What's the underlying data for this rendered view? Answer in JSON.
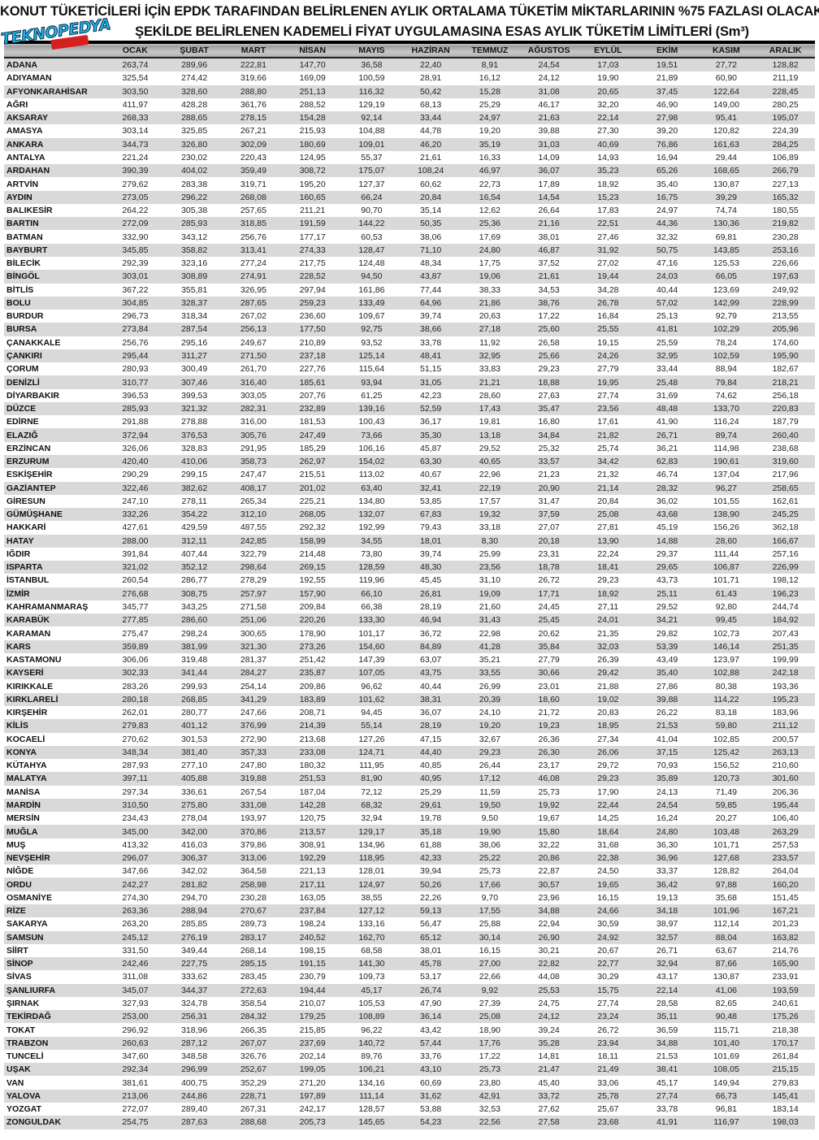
{
  "title_line1": "KONUT TÜKETİCİLERİ İÇİN EPDK TARAFINDAN BELİRLENEN AYLIK ORTALAMA TÜKETİM MİKTARLARININ %75 FAZLASI OLACAK",
  "title_line2": "ŞEKİLDE BELİRLENEN KADEMELİ FİYAT UYGULAMASINA ESAS AYLIK TÜKETİM LİMİTLERİ (Sm³)",
  "logo_text": "TEKNOPEDYA",
  "columns": [
    "",
    "OCAK",
    "ŞUBAT",
    "MART",
    "NİSAN",
    "MAYIS",
    "HAZİRAN",
    "TEMMUZ",
    "AĞUSTOS",
    "EYLÜL",
    "EKİM",
    "KASIM",
    "ARALIK"
  ],
  "rows": [
    [
      "ADANA",
      "263,74",
      "289,96",
      "222,81",
      "147,70",
      "36,58",
      "22,40",
      "8,91",
      "24,54",
      "17,03",
      "19,51",
      "27,72",
      "128,82"
    ],
    [
      "ADIYAMAN",
      "325,54",
      "274,42",
      "319,66",
      "169,09",
      "100,59",
      "28,91",
      "16,12",
      "24,12",
      "19,90",
      "21,89",
      "60,90",
      "211,19"
    ],
    [
      "AFYONKARAHİSAR",
      "303,50",
      "328,60",
      "288,80",
      "251,13",
      "116,32",
      "50,42",
      "15,28",
      "31,08",
      "20,65",
      "37,45",
      "122,64",
      "228,45"
    ],
    [
      "AĞRI",
      "411,97",
      "428,28",
      "361,76",
      "288,52",
      "129,19",
      "68,13",
      "25,29",
      "46,17",
      "32,20",
      "46,90",
      "149,00",
      "280,25"
    ],
    [
      "AKSARAY",
      "268,33",
      "288,65",
      "278,15",
      "154,28",
      "92,14",
      "33,44",
      "24,97",
      "21,63",
      "22,14",
      "27,98",
      "95,41",
      "195,07"
    ],
    [
      "AMASYA",
      "303,14",
      "325,85",
      "267,21",
      "215,93",
      "104,88",
      "44,78",
      "19,20",
      "39,88",
      "27,30",
      "39,20",
      "120,82",
      "224,39"
    ],
    [
      "ANKARA",
      "344,73",
      "326,80",
      "302,09",
      "180,69",
      "109,01",
      "46,20",
      "35,19",
      "31,03",
      "40,69",
      "76,86",
      "161,63",
      "284,25"
    ],
    [
      "ANTALYA",
      "221,24",
      "230,02",
      "220,43",
      "124,95",
      "55,37",
      "21,61",
      "16,33",
      "14,09",
      "14,93",
      "16,94",
      "29,44",
      "106,89"
    ],
    [
      "ARDAHAN",
      "390,39",
      "404,02",
      "359,49",
      "308,72",
      "175,07",
      "108,24",
      "46,97",
      "36,07",
      "35,23",
      "65,26",
      "168,65",
      "266,79"
    ],
    [
      "ARTVİN",
      "279,62",
      "283,38",
      "319,71",
      "195,20",
      "127,37",
      "60,62",
      "22,73",
      "17,89",
      "18,92",
      "35,40",
      "130,87",
      "227,13"
    ],
    [
      "AYDIN",
      "273,05",
      "296,22",
      "268,08",
      "160,65",
      "66,24",
      "20,84",
      "16,54",
      "14,54",
      "15,23",
      "16,75",
      "39,29",
      "165,32"
    ],
    [
      "BALIKESİR",
      "264,22",
      "305,38",
      "257,65",
      "211,21",
      "90,70",
      "35,14",
      "12,62",
      "26,64",
      "17,83",
      "24,97",
      "74,74",
      "180,55"
    ],
    [
      "BARTIN",
      "272,09",
      "285,93",
      "318,85",
      "191,59",
      "144,22",
      "50,35",
      "25,36",
      "21,16",
      "22,51",
      "44,36",
      "130,36",
      "219,82"
    ],
    [
      "BATMAN",
      "332,90",
      "343,12",
      "256,76",
      "177,17",
      "60,53",
      "38,06",
      "17,69",
      "38,01",
      "27,46",
      "32,32",
      "69,81",
      "230,28"
    ],
    [
      "BAYBURT",
      "345,85",
      "358,82",
      "313,41",
      "274,33",
      "128,47",
      "71,10",
      "24,80",
      "46,87",
      "31,92",
      "50,75",
      "143,85",
      "253,16"
    ],
    [
      "BİLECİK",
      "292,39",
      "323,16",
      "277,24",
      "217,75",
      "124,48",
      "48,34",
      "17,75",
      "37,52",
      "27,02",
      "47,16",
      "125,53",
      "226,66"
    ],
    [
      "BİNGÖL",
      "303,01",
      "308,89",
      "274,91",
      "228,52",
      "94,50",
      "43,87",
      "19,06",
      "21,61",
      "19,44",
      "24,03",
      "66,05",
      "197,63"
    ],
    [
      "BİTLİS",
      "367,22",
      "355,81",
      "326,95",
      "297,94",
      "161,86",
      "77,44",
      "38,33",
      "34,53",
      "34,28",
      "40,44",
      "123,69",
      "249,92"
    ],
    [
      "BOLU",
      "304,85",
      "328,37",
      "287,65",
      "259,23",
      "133,49",
      "64,96",
      "21,86",
      "38,76",
      "26,78",
      "57,02",
      "142,99",
      "228,99"
    ],
    [
      "BURDUR",
      "296,73",
      "318,34",
      "267,02",
      "236,60",
      "109,67",
      "39,74",
      "20,63",
      "17,22",
      "16,84",
      "25,13",
      "92,79",
      "213,55"
    ],
    [
      "BURSA",
      "273,84",
      "287,54",
      "256,13",
      "177,50",
      "92,75",
      "38,66",
      "27,18",
      "25,60",
      "25,55",
      "41,81",
      "102,29",
      "205,96"
    ],
    [
      "ÇANAKKALE",
      "256,76",
      "295,16",
      "249,67",
      "210,89",
      "93,52",
      "33,78",
      "11,92",
      "26,58",
      "19,15",
      "25,59",
      "78,24",
      "174,60"
    ],
    [
      "ÇANKIRI",
      "295,44",
      "311,27",
      "271,50",
      "237,18",
      "125,14",
      "48,41",
      "32,95",
      "25,66",
      "24,26",
      "32,95",
      "102,59",
      "195,90"
    ],
    [
      "ÇORUM",
      "280,93",
      "300,49",
      "261,70",
      "227,76",
      "115,64",
      "51,15",
      "33,83",
      "29,23",
      "27,79",
      "33,44",
      "88,94",
      "182,67"
    ],
    [
      "DENİZLİ",
      "310,77",
      "307,46",
      "316,40",
      "185,61",
      "93,94",
      "31,05",
      "21,21",
      "18,88",
      "19,95",
      "25,48",
      "79,84",
      "218,21"
    ],
    [
      "DİYARBAKIR",
      "396,53",
      "399,53",
      "303,05",
      "207,76",
      "61,25",
      "42,23",
      "28,60",
      "27,63",
      "27,74",
      "31,69",
      "74,62",
      "256,18"
    ],
    [
      "DÜZCE",
      "285,93",
      "321,32",
      "282,31",
      "232,89",
      "139,16",
      "52,59",
      "17,43",
      "35,47",
      "23,56",
      "48,48",
      "133,70",
      "220,83"
    ],
    [
      "EDİRNE",
      "291,88",
      "278,88",
      "316,00",
      "181,53",
      "100,43",
      "36,17",
      "19,81",
      "16,80",
      "17,61",
      "41,90",
      "116,24",
      "187,79"
    ],
    [
      "ELAZIĞ",
      "372,94",
      "376,53",
      "305,76",
      "247,49",
      "73,66",
      "35,30",
      "13,18",
      "34,84",
      "21,82",
      "26,71",
      "89,74",
      "260,40"
    ],
    [
      "ERZİNCAN",
      "326,06",
      "328,83",
      "291,95",
      "185,29",
      "106,16",
      "45,87",
      "29,52",
      "25,32",
      "25,74",
      "36,21",
      "114,98",
      "238,68"
    ],
    [
      "ERZURUM",
      "420,40",
      "410,06",
      "358,73",
      "262,97",
      "154,02",
      "63,30",
      "40,65",
      "33,57",
      "34,42",
      "62,83",
      "190,61",
      "319,60"
    ],
    [
      "ESKİŞEHİR",
      "290,29",
      "299,15",
      "247,47",
      "215,51",
      "113,02",
      "40,67",
      "22,96",
      "21,23",
      "21,32",
      "46,74",
      "137,04",
      "217,96"
    ],
    [
      "GAZİANTEP",
      "322,46",
      "382,62",
      "408,17",
      "201,02",
      "63,40",
      "32,41",
      "22,19",
      "20,90",
      "21,14",
      "28,32",
      "96,27",
      "258,65"
    ],
    [
      "GİRESUN",
      "247,10",
      "278,11",
      "265,34",
      "225,21",
      "134,80",
      "53,85",
      "17,57",
      "31,47",
      "20,84",
      "36,02",
      "101,55",
      "162,61"
    ],
    [
      "GÜMÜŞHANE",
      "332,26",
      "354,22",
      "312,10",
      "268,05",
      "132,07",
      "67,83",
      "19,32",
      "37,59",
      "25,08",
      "43,68",
      "138,90",
      "245,25"
    ],
    [
      "HAKKARİ",
      "427,61",
      "429,59",
      "487,55",
      "292,32",
      "192,99",
      "79,43",
      "33,18",
      "27,07",
      "27,81",
      "45,19",
      "156,26",
      "362,18"
    ],
    [
      "HATAY",
      "288,00",
      "312,11",
      "242,85",
      "158,99",
      "34,55",
      "18,01",
      "8,30",
      "20,18",
      "13,90",
      "14,88",
      "28,60",
      "166,67"
    ],
    [
      "IĞDIR",
      "391,84",
      "407,44",
      "322,79",
      "214,48",
      "73,80",
      "39,74",
      "25,99",
      "23,31",
      "22,24",
      "29,37",
      "111,44",
      "257,16"
    ],
    [
      "ISPARTA",
      "321,02",
      "352,12",
      "298,64",
      "269,15",
      "128,59",
      "48,30",
      "23,56",
      "18,78",
      "18,41",
      "29,65",
      "106,87",
      "226,99"
    ],
    [
      "İSTANBUL",
      "260,54",
      "286,77",
      "278,29",
      "192,55",
      "119,96",
      "45,45",
      "31,10",
      "26,72",
      "29,23",
      "43,73",
      "101,71",
      "198,12"
    ],
    [
      "İZMİR",
      "276,68",
      "308,75",
      "257,97",
      "157,90",
      "66,10",
      "26,81",
      "19,09",
      "17,71",
      "18,92",
      "25,11",
      "61,43",
      "196,23"
    ],
    [
      "KAHRAMANMARAŞ",
      "345,77",
      "343,25",
      "271,58",
      "209,84",
      "66,38",
      "28,19",
      "21,60",
      "24,45",
      "27,11",
      "29,52",
      "92,80",
      "244,74"
    ],
    [
      "KARABÜK",
      "277,85",
      "286,60",
      "251,06",
      "220,26",
      "133,30",
      "46,94",
      "31,43",
      "25,45",
      "24,01",
      "34,21",
      "99,45",
      "184,92"
    ],
    [
      "KARAMAN",
      "275,47",
      "298,24",
      "300,65",
      "178,90",
      "101,17",
      "36,72",
      "22,98",
      "20,62",
      "21,35",
      "29,82",
      "102,73",
      "207,43"
    ],
    [
      "KARS",
      "359,89",
      "381,99",
      "321,30",
      "273,26",
      "154,60",
      "84,89",
      "41,28",
      "35,84",
      "32,03",
      "53,39",
      "146,14",
      "251,35"
    ],
    [
      "KASTAMONU",
      "306,06",
      "319,48",
      "281,37",
      "251,42",
      "147,39",
      "63,07",
      "35,21",
      "27,79",
      "26,39",
      "43,49",
      "123,97",
      "199,99"
    ],
    [
      "KAYSERİ",
      "302,33",
      "341,44",
      "284,27",
      "235,87",
      "107,05",
      "43,75",
      "33,55",
      "30,66",
      "29,42",
      "35,40",
      "102,88",
      "242,18"
    ],
    [
      "KIRIKKALE",
      "283,26",
      "299,93",
      "254,14",
      "209,86",
      "96,62",
      "40,44",
      "26,99",
      "23,01",
      "21,88",
      "27,86",
      "80,38",
      "193,36"
    ],
    [
      "KIRKLARELİ",
      "280,18",
      "268,85",
      "341,29",
      "183,89",
      "101,62",
      "38,31",
      "20,39",
      "18,60",
      "19,02",
      "39,88",
      "114,22",
      "195,23"
    ],
    [
      "KIRŞEHİR",
      "262,01",
      "280,77",
      "247,66",
      "208,71",
      "94,45",
      "36,07",
      "24,10",
      "21,72",
      "20,83",
      "26,22",
      "83,18",
      "183,96"
    ],
    [
      "KİLİS",
      "279,83",
      "401,12",
      "376,99",
      "214,39",
      "55,14",
      "28,19",
      "19,20",
      "19,23",
      "18,95",
      "21,53",
      "59,80",
      "211,12"
    ],
    [
      "KOCAELİ",
      "270,62",
      "301,53",
      "272,90",
      "213,68",
      "127,26",
      "47,15",
      "32,67",
      "26,36",
      "27,34",
      "41,04",
      "102,85",
      "200,57"
    ],
    [
      "KONYA",
      "348,34",
      "381,40",
      "357,33",
      "233,08",
      "124,71",
      "44,40",
      "29,23",
      "26,30",
      "26,06",
      "37,15",
      "125,42",
      "263,13"
    ],
    [
      "KÜTAHYA",
      "287,93",
      "277,10",
      "247,80",
      "180,32",
      "111,95",
      "40,85",
      "26,44",
      "23,17",
      "29,72",
      "70,93",
      "156,52",
      "210,60"
    ],
    [
      "MALATYA",
      "397,11",
      "405,88",
      "319,88",
      "251,53",
      "81,90",
      "40,95",
      "17,12",
      "46,08",
      "29,23",
      "35,89",
      "120,73",
      "301,60"
    ],
    [
      "MANİSA",
      "297,34",
      "336,61",
      "267,54",
      "187,04",
      "72,12",
      "25,29",
      "11,59",
      "25,73",
      "17,90",
      "24,13",
      "71,49",
      "206,36"
    ],
    [
      "MARDİN",
      "310,50",
      "275,80",
      "331,08",
      "142,28",
      "68,32",
      "29,61",
      "19,50",
      "19,92",
      "22,44",
      "24,54",
      "59,85",
      "195,44"
    ],
    [
      "MERSİN",
      "234,43",
      "278,04",
      "193,97",
      "120,75",
      "32,94",
      "19,78",
      "9,50",
      "19,67",
      "14,25",
      "16,24",
      "20,27",
      "106,40"
    ],
    [
      "MUĞLA",
      "345,00",
      "342,00",
      "370,86",
      "213,57",
      "129,17",
      "35,18",
      "19,90",
      "15,80",
      "18,64",
      "24,80",
      "103,48",
      "263,29"
    ],
    [
      "MUŞ",
      "413,32",
      "416,03",
      "379,86",
      "308,91",
      "134,96",
      "61,88",
      "38,06",
      "32,22",
      "31,68",
      "36,30",
      "101,71",
      "257,53"
    ],
    [
      "NEVŞEHİR",
      "296,07",
      "306,37",
      "313,06",
      "192,29",
      "118,95",
      "42,33",
      "25,22",
      "20,86",
      "22,38",
      "36,96",
      "127,68",
      "233,57"
    ],
    [
      "NİĞDE",
      "347,66",
      "342,02",
      "364,58",
      "221,13",
      "128,01",
      "39,94",
      "25,73",
      "22,87",
      "24,50",
      "33,37",
      "128,82",
      "264,04"
    ],
    [
      "ORDU",
      "242,27",
      "281,82",
      "258,98",
      "217,11",
      "124,97",
      "50,26",
      "17,66",
      "30,57",
      "19,65",
      "36,42",
      "97,88",
      "160,20"
    ],
    [
      "OSMANİYE",
      "274,30",
      "294,70",
      "230,28",
      "163,05",
      "38,55",
      "22,26",
      "9,70",
      "23,96",
      "16,15",
      "19,13",
      "35,68",
      "151,45"
    ],
    [
      "RİZE",
      "263,36",
      "288,94",
      "270,67",
      "237,84",
      "127,12",
      "59,13",
      "17,55",
      "34,88",
      "24,66",
      "34,18",
      "101,96",
      "167,21"
    ],
    [
      "SAKARYA",
      "263,20",
      "285,85",
      "289,73",
      "198,24",
      "133,16",
      "56,47",
      "25,88",
      "22,94",
      "30,59",
      "38,97",
      "112,14",
      "201,23"
    ],
    [
      "SAMSUN",
      "245,12",
      "276,19",
      "283,17",
      "240,52",
      "162,70",
      "65,12",
      "30,14",
      "26,90",
      "24,92",
      "32,57",
      "88,04",
      "163,82"
    ],
    [
      "SİİRT",
      "331,50",
      "349,44",
      "268,14",
      "198,15",
      "68,58",
      "38,01",
      "16,15",
      "30,21",
      "20,67",
      "26,71",
      "63,67",
      "214,76"
    ],
    [
      "SİNOP",
      "242,46",
      "227,75",
      "285,15",
      "191,15",
      "141,30",
      "45,78",
      "27,00",
      "22,82",
      "22,77",
      "32,94",
      "87,66",
      "165,90"
    ],
    [
      "SİVAS",
      "311,08",
      "333,62",
      "283,45",
      "230,79",
      "109,73",
      "53,17",
      "22,66",
      "44,08",
      "30,29",
      "43,17",
      "130,87",
      "233,91"
    ],
    [
      "ŞANLIURFA",
      "345,07",
      "344,37",
      "272,63",
      "194,44",
      "45,17",
      "26,74",
      "9,92",
      "25,53",
      "15,75",
      "22,14",
      "41,06",
      "193,59"
    ],
    [
      "ŞIRNAK",
      "327,93",
      "324,78",
      "358,54",
      "210,07",
      "105,53",
      "47,90",
      "27,39",
      "24,75",
      "27,74",
      "28,58",
      "82,65",
      "240,61"
    ],
    [
      "TEKİRDAĞ",
      "253,00",
      "256,31",
      "284,32",
      "179,25",
      "108,89",
      "36,14",
      "25,08",
      "24,12",
      "23,24",
      "35,11",
      "90,48",
      "175,26"
    ],
    [
      "TOKAT",
      "296,92",
      "318,96",
      "266,35",
      "215,85",
      "96,22",
      "43,42",
      "18,90",
      "39,24",
      "26,72",
      "36,59",
      "115,71",
      "218,38"
    ],
    [
      "TRABZON",
      "260,63",
      "287,12",
      "267,07",
      "237,69",
      "140,72",
      "57,44",
      "17,76",
      "35,28",
      "23,94",
      "34,88",
      "101,40",
      "170,17"
    ],
    [
      "TUNCELİ",
      "347,60",
      "348,58",
      "326,76",
      "202,14",
      "89,76",
      "33,76",
      "17,22",
      "14,81",
      "18,11",
      "21,53",
      "101,69",
      "261,84"
    ],
    [
      "UŞAK",
      "292,34",
      "296,99",
      "252,67",
      "199,05",
      "106,21",
      "43,10",
      "25,73",
      "21,47",
      "21,49",
      "38,41",
      "108,05",
      "215,15"
    ],
    [
      "VAN",
      "381,61",
      "400,75",
      "352,29",
      "271,20",
      "134,16",
      "60,69",
      "23,80",
      "45,40",
      "33,06",
      "45,17",
      "149,94",
      "279,83"
    ],
    [
      "YALOVA",
      "213,06",
      "244,86",
      "228,71",
      "197,89",
      "111,14",
      "31,62",
      "42,91",
      "33,72",
      "25,78",
      "27,74",
      "66,73",
      "145,41"
    ],
    [
      "YOZGAT",
      "272,07",
      "289,40",
      "267,31",
      "242,17",
      "128,57",
      "53,88",
      "32,53",
      "27,62",
      "25,67",
      "33,78",
      "96,81",
      "183,14"
    ],
    [
      "ZONGULDAK",
      "254,75",
      "287,63",
      "288,68",
      "205,73",
      "145,65",
      "54,23",
      "22,56",
      "27,58",
      "23,68",
      "41,91",
      "116,97",
      "198,03"
    ]
  ]
}
